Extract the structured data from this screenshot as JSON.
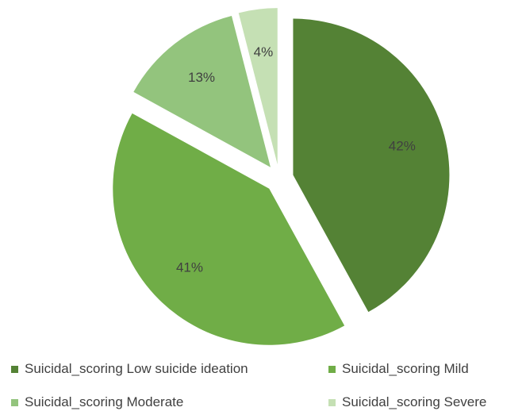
{
  "chart_data": {
    "type": "pie",
    "title": "",
    "exploded": true,
    "labels": [
      "Suicidal_scoring Low suicide ideation",
      "Suicidal_scoring Mild",
      "Suicidal_scoring Moderate",
      "Suicidal_scoring Severe"
    ],
    "values": [
      42,
      41,
      13,
      4
    ],
    "data_labels": [
      "42%",
      "41%",
      "13%",
      "4%"
    ],
    "colors": [
      "#548235",
      "#70AD47",
      "#93C47D",
      "#C5E0B4"
    ],
    "legend_position": "bottom"
  }
}
